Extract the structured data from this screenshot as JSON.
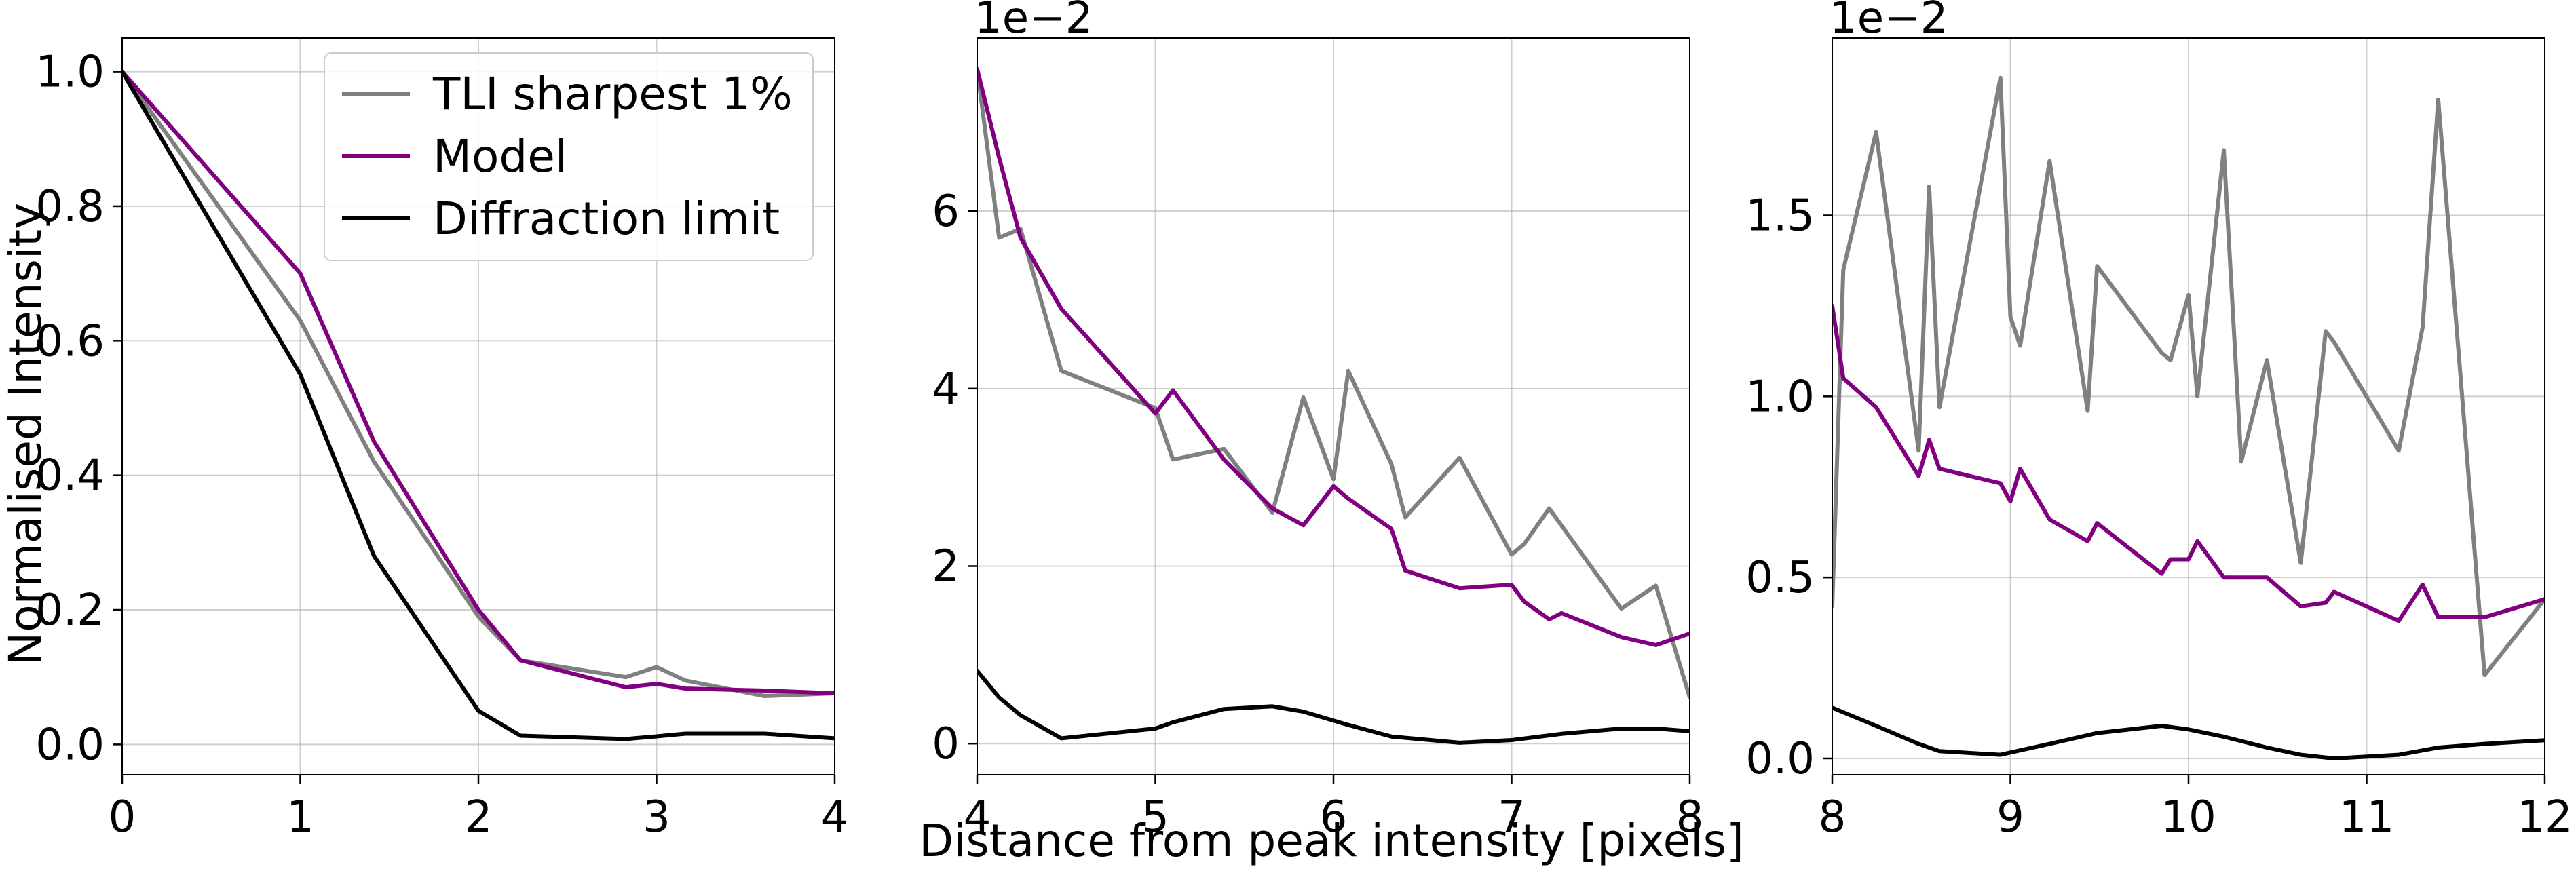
{
  "figure": {
    "shared_xlabel": "Distance from peak intensity [pixels]",
    "ylabel": "Normalised Intensity"
  },
  "chart_data": [
    {
      "type": "line",
      "xlim": [
        0,
        4
      ],
      "ylim": [
        -0.045,
        1.05
      ],
      "xticks": [
        0,
        1,
        2,
        3,
        4
      ],
      "xtick_labels": [
        "0",
        "1",
        "2",
        "3",
        "4"
      ],
      "yticks": [
        0.0,
        0.2,
        0.4,
        0.6,
        0.8,
        1.0
      ],
      "ytick_labels": [
        "0.0",
        "0.2",
        "0.4",
        "0.6",
        "0.8",
        "1.0"
      ],
      "offset_text": "",
      "grid": true,
      "legend": {
        "placement": "top-right",
        "entries": [
          {
            "label": "TLI sharpest 1%",
            "color": "#808080"
          },
          {
            "label": "Model",
            "color": "#800080"
          },
          {
            "label": "Diffraction limit",
            "color": "#000000"
          }
        ]
      },
      "series": [
        {
          "name": "TLI sharpest 1%",
          "color": "#808080",
          "x": [
            0,
            1,
            1.414,
            2,
            2.236,
            2.828,
            3,
            3.162,
            3.606,
            4
          ],
          "y": [
            1.0,
            0.63,
            0.42,
            0.19,
            0.125,
            0.1,
            0.115,
            0.095,
            0.072,
            0.076
          ]
        },
        {
          "name": "Model",
          "color": "#800080",
          "x": [
            0,
            1,
            1.414,
            2,
            2.236,
            2.828,
            3,
            3.162,
            3.606,
            4
          ],
          "y": [
            1.0,
            0.7,
            0.45,
            0.2,
            0.125,
            0.085,
            0.09,
            0.083,
            0.08,
            0.076
          ]
        },
        {
          "name": "Diffraction limit",
          "color": "#000000",
          "x": [
            0,
            1,
            1.414,
            2,
            2.236,
            2.828,
            3,
            3.162,
            3.606,
            4
          ],
          "y": [
            1.0,
            0.55,
            0.28,
            0.05,
            0.013,
            0.008,
            0.012,
            0.016,
            0.016,
            0.009
          ]
        }
      ]
    },
    {
      "type": "line",
      "xlim": [
        4,
        8
      ],
      "ylim": [
        -0.0035,
        0.0795
      ],
      "scale": 0.01,
      "xticks": [
        4,
        5,
        6,
        7,
        8
      ],
      "xtick_labels": [
        "4",
        "5",
        "6",
        "7",
        "8"
      ],
      "yticks": [
        0,
        0.02,
        0.04,
        0.06
      ],
      "ytick_labels": [
        "0",
        "2",
        "4",
        "6"
      ],
      "offset_text": "1e−2",
      "grid": true,
      "series": [
        {
          "name": "TLI sharpest 1%",
          "color": "#808080",
          "x": [
            4,
            4.123,
            4.243,
            4.472,
            5,
            5.099,
            5.385,
            5.657,
            5.831,
            6,
            6.083,
            6.325,
            6.403,
            6.708,
            7,
            7.071,
            7.211,
            7.616,
            7.81,
            8
          ],
          "y": [
            0.076,
            0.057,
            0.058,
            0.042,
            0.0378,
            0.032,
            0.0332,
            0.026,
            0.039,
            0.0298,
            0.042,
            0.0315,
            0.0255,
            0.0322,
            0.0213,
            0.0225,
            0.0265,
            0.0152,
            0.0178,
            0.0052
          ]
        },
        {
          "name": "Model",
          "color": "#800080",
          "x": [
            4,
            4.123,
            4.243,
            4.472,
            5,
            5.099,
            5.385,
            5.657,
            5.831,
            6,
            6.083,
            6.325,
            6.403,
            6.708,
            7,
            7.071,
            7.211,
            7.28,
            7.616,
            7.81,
            8
          ],
          "y": [
            0.076,
            0.066,
            0.057,
            0.049,
            0.0372,
            0.0398,
            0.032,
            0.0265,
            0.0246,
            0.029,
            0.0276,
            0.0242,
            0.0195,
            0.0175,
            0.0179,
            0.016,
            0.014,
            0.0147,
            0.012,
            0.0111,
            0.0124
          ]
        },
        {
          "name": "Diffraction limit",
          "color": "#000000",
          "x": [
            4,
            4.123,
            4.243,
            4.472,
            5,
            5.099,
            5.385,
            5.657,
            5.831,
            6,
            6.083,
            6.325,
            6.708,
            7,
            7.28,
            7.616,
            7.81,
            8
          ],
          "y": [
            0.0082,
            0.0052,
            0.0032,
            0.0006,
            0.0017,
            0.0024,
            0.0039,
            0.0042,
            0.0036,
            0.0026,
            0.0021,
            0.0008,
            0.0001,
            0.0004,
            0.0011,
            0.0017,
            0.0017,
            0.0014
          ]
        }
      ]
    },
    {
      "type": "line",
      "xlim": [
        8,
        12
      ],
      "ylim": [
        -0.00045,
        0.0199
      ],
      "scale": 0.01,
      "xticks": [
        8,
        9,
        10,
        11,
        12
      ],
      "xtick_labels": [
        "8",
        "9",
        "10",
        "11",
        "12"
      ],
      "yticks": [
        0,
        0.005,
        0.01,
        0.015
      ],
      "ytick_labels": [
        "0.0",
        "0.5",
        "1.0",
        "1.5"
      ],
      "offset_text": "1e−2",
      "grid": true,
      "series": [
        {
          "name": "TLI sharpest 1%",
          "color": "#808080",
          "x": [
            8,
            8.062,
            8.246,
            8.485,
            8.544,
            8.602,
            8.944,
            9,
            9.055,
            9.22,
            9.434,
            9.487,
            9.849,
            9.899,
            10,
            10.05,
            10.198,
            10.296,
            10.44,
            10.63,
            10.77,
            10.817,
            11.18,
            11.314,
            11.402,
            11.662,
            12
          ],
          "y": [
            0.0042,
            0.0135,
            0.0173,
            0.0085,
            0.0158,
            0.0097,
            0.0188,
            0.0122,
            0.0114,
            0.0165,
            0.0096,
            0.0136,
            0.0112,
            0.011,
            0.0128,
            0.01,
            0.0168,
            0.0082,
            0.011,
            0.0054,
            0.0118,
            0.0115,
            0.0085,
            0.0119,
            0.0182,
            0.0023,
            0.0044
          ]
        },
        {
          "name": "Model",
          "color": "#800080",
          "x": [
            8,
            8.062,
            8.246,
            8.485,
            8.544,
            8.602,
            8.944,
            9,
            9.055,
            9.22,
            9.434,
            9.487,
            9.849,
            9.899,
            10,
            10.05,
            10.198,
            10.296,
            10.44,
            10.63,
            10.77,
            10.817,
            11.18,
            11.314,
            11.402,
            11.662,
            12
          ],
          "y": [
            0.0125,
            0.0105,
            0.0097,
            0.0078,
            0.0088,
            0.008,
            0.0076,
            0.0071,
            0.008,
            0.0066,
            0.006,
            0.0065,
            0.0051,
            0.0055,
            0.0055,
            0.006,
            0.005,
            0.005,
            0.005,
            0.0042,
            0.0043,
            0.0046,
            0.0038,
            0.0048,
            0.0039,
            0.0039,
            0.0044
          ]
        },
        {
          "name": "Diffraction limit",
          "color": "#000000",
          "x": [
            8,
            8.246,
            8.485,
            8.602,
            8.944,
            9.22,
            9.487,
            9.849,
            10,
            10.198,
            10.44,
            10.63,
            10.817,
            11.18,
            11.402,
            11.662,
            12
          ],
          "y": [
            0.0014,
            0.0009,
            0.0004,
            0.0002,
            0.0001,
            0.0004,
            0.0007,
            0.0009,
            0.0008,
            0.0006,
            0.0003,
            0.0001,
            0.0,
            0.0001,
            0.0003,
            0.0004,
            0.0005
          ]
        }
      ]
    }
  ]
}
